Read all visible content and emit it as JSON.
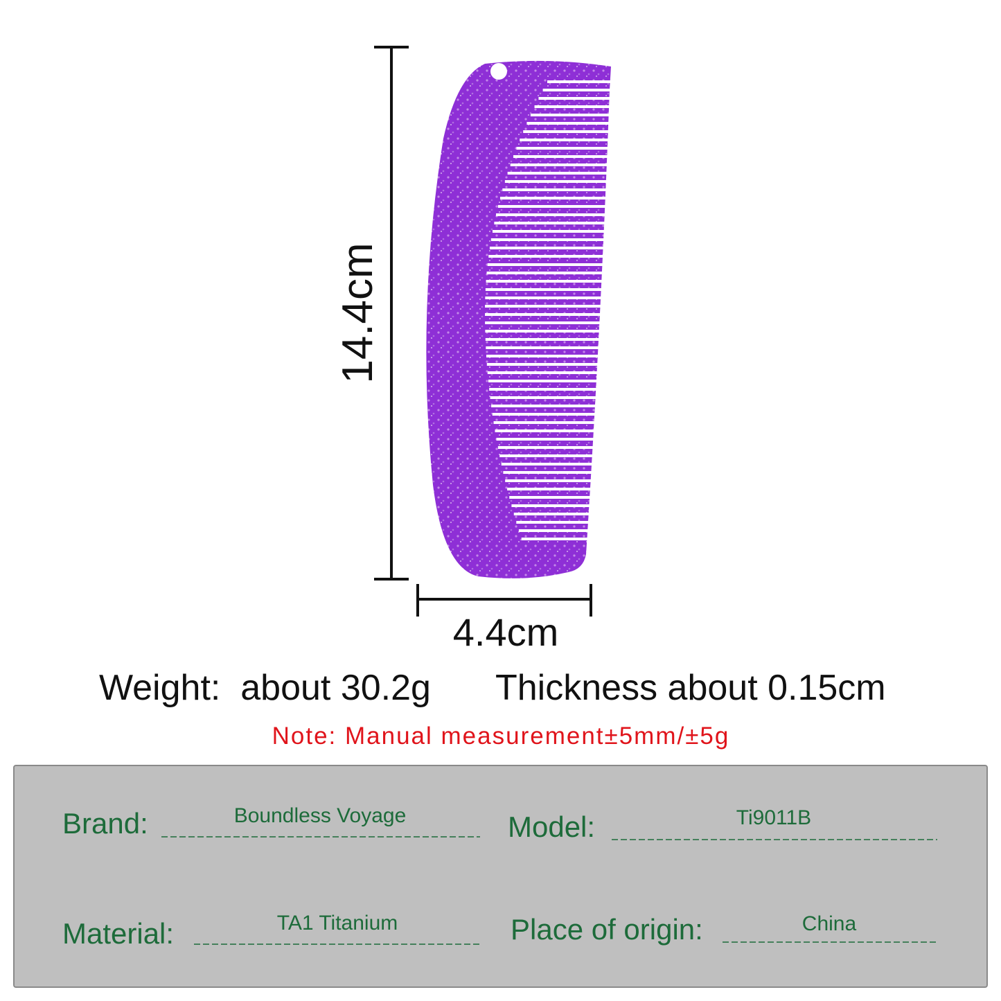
{
  "dimensions": {
    "height": "14.4cm",
    "width": "4.4cm"
  },
  "specs": {
    "weight": "Weight:  about 30.2g",
    "thickness": "Thickness about 0.15cm"
  },
  "note": "Note: Manual measurement±5mm/±5g",
  "table": {
    "rows": [
      {
        "label": "Brand:",
        "value": "Boundless Voyage"
      },
      {
        "label": "Model:",
        "value": "Ti9011B"
      },
      {
        "label": "Material:",
        "value": "TA1 Titanium"
      },
      {
        "label": "Place of origin:",
        "value": "China"
      }
    ]
  }
}
